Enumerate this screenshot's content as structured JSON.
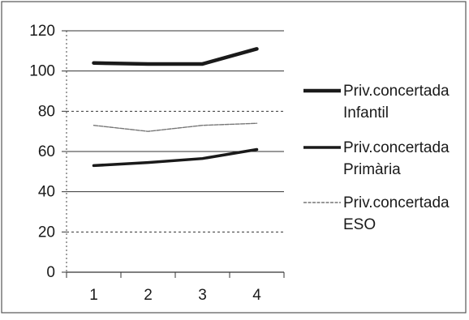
{
  "chart_data": {
    "type": "line",
    "title": "",
    "xlabel": "",
    "ylabel": "",
    "x": [
      1,
      2,
      3,
      4
    ],
    "x_tick_labels": [
      "1",
      "2",
      "3",
      "4"
    ],
    "ylim": [
      0,
      120
    ],
    "y_ticks": [
      0,
      20,
      40,
      60,
      80,
      100,
      120
    ],
    "y_tick_labels": [
      "0",
      "20",
      "40",
      "60",
      "80",
      "100",
      "120"
    ],
    "grid": "horizontal",
    "legend_position": "right",
    "series": [
      {
        "name": "Priv.concertada Infantil",
        "legend_lines": [
          "Priv.concertada",
          "Infantil"
        ],
        "values": [
          104,
          103.5,
          103.5,
          111
        ],
        "color": "#1a1a1a",
        "style": "thick"
      },
      {
        "name": "Priv.concertada Primària",
        "legend_lines": [
          "Priv.concertada",
          "Primària"
        ],
        "values": [
          53,
          54.5,
          56.5,
          61
        ],
        "color": "#1a1a1a",
        "style": "medium"
      },
      {
        "name": "Priv.concertada ESO",
        "legend_lines": [
          "Priv.concertada",
          "ESO"
        ],
        "values": [
          73,
          70,
          73,
          74
        ],
        "color": "#777777",
        "style": "thin"
      }
    ]
  }
}
